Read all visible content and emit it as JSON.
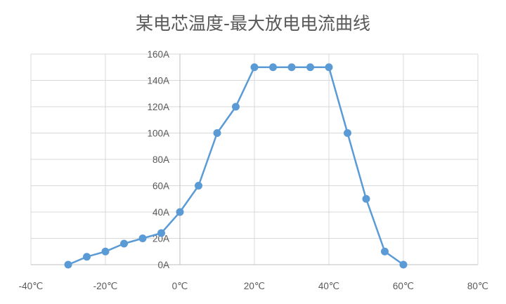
{
  "chart_data": {
    "type": "line",
    "title": "某电芯温度-最大放电电流曲线",
    "xlabel": "",
    "ylabel": "",
    "xlim": [
      -40,
      80
    ],
    "ylim": [
      0,
      160
    ],
    "x_ticks": [
      "-40℃",
      "-20℃",
      "0℃",
      "20℃",
      "40℃",
      "60℃",
      "80℃"
    ],
    "y_ticks": [
      "0A",
      "20A",
      "40A",
      "60A",
      "80A",
      "100A",
      "120A",
      "140A",
      "160A"
    ],
    "grid": true,
    "legend": "none",
    "series": [
      {
        "color": "#5b9bd5",
        "x": [
          -30,
          -25,
          -20,
          -15,
          -10,
          -5,
          0,
          5,
          10,
          15,
          20,
          25,
          30,
          35,
          40,
          45,
          50,
          55,
          60
        ],
        "y": [
          0,
          6,
          10,
          16,
          20,
          24,
          40,
          60,
          100,
          120,
          150,
          150,
          150,
          150,
          150,
          100,
          50,
          10,
          0
        ]
      }
    ]
  }
}
